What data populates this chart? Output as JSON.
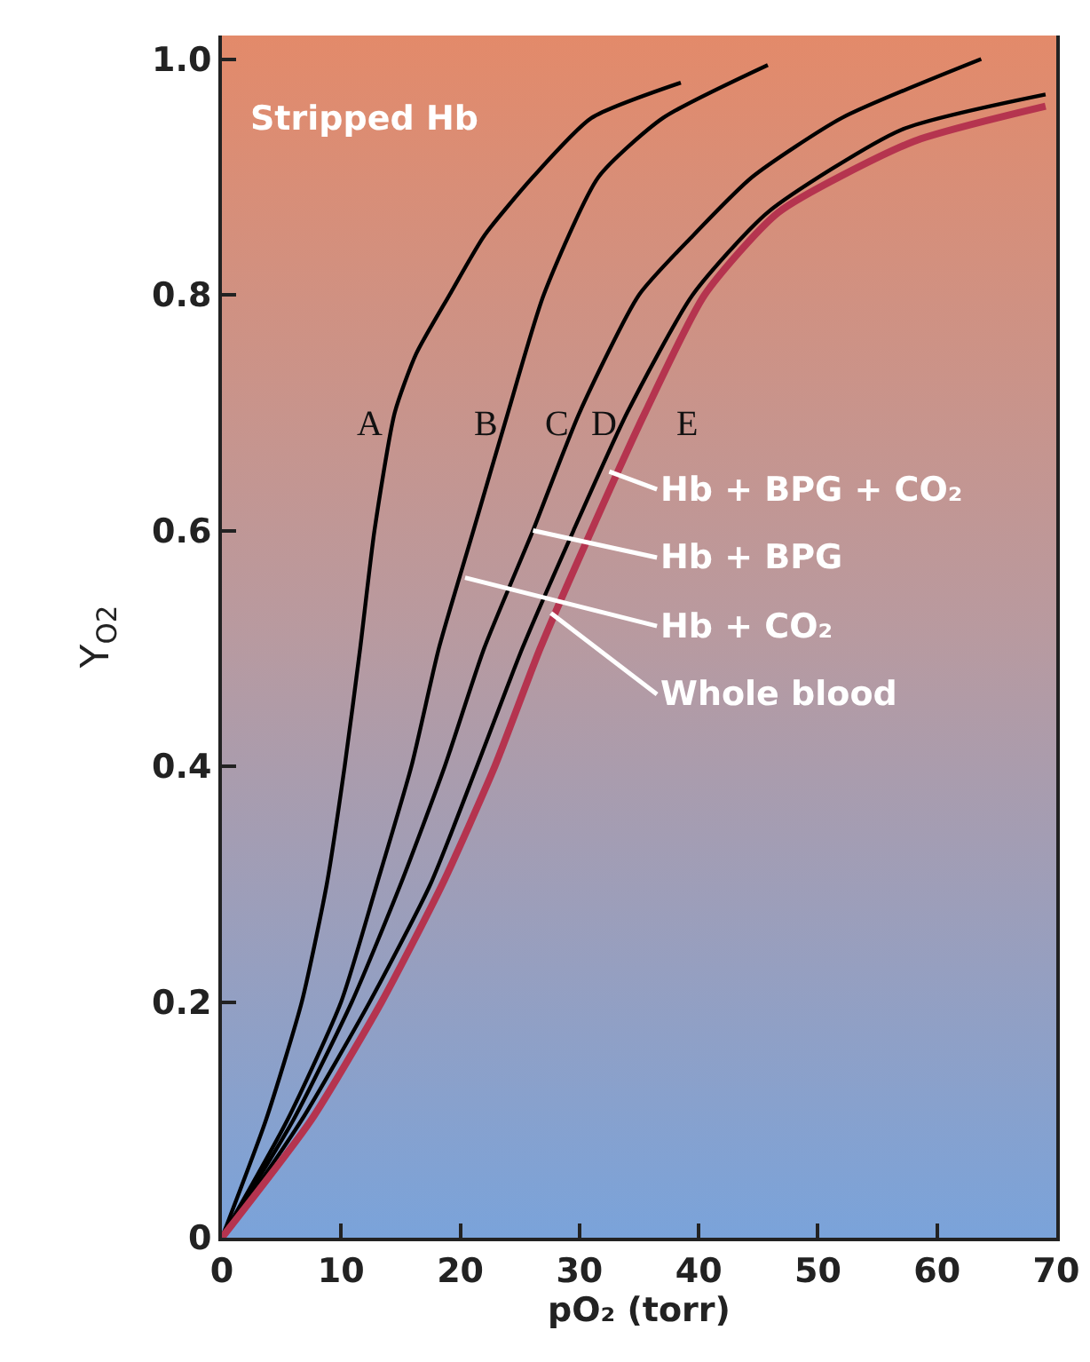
{
  "chart_data": {
    "type": "line",
    "xlabel": "pO₂ (torr)",
    "ylabel": "Y$_{O2}$",
    "xlim": [
      0,
      70
    ],
    "xticks": [
      0,
      10,
      20,
      30,
      40,
      50,
      60,
      70
    ],
    "ylim": [
      0,
      1.02
    ],
    "yticks": [
      0,
      0.2,
      0.4,
      0.6,
      0.8,
      {
        "value": 1,
        "label": "1.0"
      }
    ],
    "grid": false,
    "legend": false,
    "marker": "none",
    "line_style": "solid",
    "series": [
      {
        "name": "A",
        "color": "#000000",
        "x": [
          0,
          3.7,
          6.7,
          8.8,
          10.3,
          11.6,
          12.8,
          14.5,
          16.3,
          19.1,
          22,
          26.1,
          31,
          38.5
        ],
        "values": [
          0,
          0.1,
          0.2,
          0.3,
          0.4,
          0.5,
          0.6,
          0.7,
          0.75,
          0.8,
          0.85,
          0.9,
          0.95,
          0.98
        ]
      },
      {
        "name": "B",
        "color": "#000000",
        "x": [
          0,
          5.5,
          10,
          13,
          15.9,
          18.2,
          21.1,
          24,
          27,
          31.6,
          37,
          45.8
        ],
        "values": [
          0,
          0.1,
          0.2,
          0.3,
          0.4,
          0.5,
          0.6,
          0.7,
          0.8,
          0.9,
          0.95,
          0.995
        ]
      },
      {
        "name": "C",
        "color": "#000000",
        "x": [
          0,
          6,
          10.9,
          15,
          18.7,
          22,
          26.1,
          30,
          35,
          39.5,
          44.5,
          52,
          63.7
        ],
        "values": [
          0,
          0.1,
          0.2,
          0.3,
          0.4,
          0.5,
          0.6,
          0.7,
          0.8,
          0.85,
          0.9,
          0.95,
          1.0
        ]
      },
      {
        "name": "D",
        "color": "#000000",
        "x": [
          0,
          6.7,
          12.4,
          17.5,
          21.4,
          25.2,
          29.5,
          34,
          39.5,
          45.8,
          57,
          69.1
        ],
        "values": [
          0,
          0.1,
          0.2,
          0.3,
          0.4,
          0.5,
          0.6,
          0.7,
          0.8,
          0.87,
          0.94,
          0.97
        ]
      },
      {
        "name": "E",
        "color": "#b5344f",
        "x": [
          0,
          7.5,
          13.4,
          18.5,
          22.9,
          26.7,
          31,
          35.5,
          40.5,
          46.7,
          58,
          69.1
        ],
        "values": [
          0,
          0.1,
          0.2,
          0.3,
          0.4,
          0.5,
          0.6,
          0.7,
          0.8,
          0.87,
          0.93,
          0.96
        ]
      }
    ],
    "annotations": [
      "Stripped Hb",
      {
        "text": "Hb + BPG + CO₂",
        "x": 32.5,
        "y": 0.65
      },
      {
        "text": "Hb + BPG",
        "x": 26.1,
        "y": 0.6
      },
      {
        "text": "Hb + CO₂",
        "x": 20.4,
        "y": 0.56
      },
      {
        "text": "Whole blood",
        "x": 27.6,
        "y": 0.53
      }
    ]
  }
}
